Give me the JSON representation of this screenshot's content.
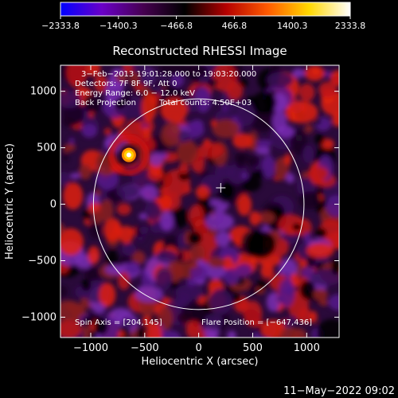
{
  "chart_data": {
    "type": "heatmap",
    "title": "Reconstructed RHESSI Image",
    "xlabel": "Heliocentric X (arcsec)",
    "ylabel": "Heliocentric Y (arcsec)",
    "xlim": [
      -1280,
      1300
    ],
    "ylim": [
      -1180,
      1230
    ],
    "x_ticks": [
      -1000,
      -500,
      0,
      500,
      1000
    ],
    "x_tick_labels": [
      "−1000",
      "−500",
      "0",
      "500",
      "1000"
    ],
    "y_ticks": [
      -1000,
      -500,
      0,
      500,
      1000
    ],
    "y_tick_labels": [
      "−1000",
      "−500",
      "0",
      "500",
      "1000"
    ],
    "colorbar": {
      "range": [
        -2333.8,
        2333.8
      ],
      "ticks": [
        -2333.8,
        -1400.3,
        -466.8,
        466.8,
        1400.3,
        2333.8
      ],
      "tick_labels": [
        "−2333.8",
        "−1400.3",
        "−466.8",
        "466.8",
        "1400.3",
        "2333.8"
      ],
      "stops": [
        "#0000ff",
        "#6a00c8",
        "#460050",
        "#000000",
        "#b40000",
        "#ff5a00",
        "#ffd700",
        "#ffffff"
      ]
    },
    "annotations": [
      "3−Feb−2013 19:01:28.000 to 19:03:20.000",
      "Detectors: 7F 8F 9F, Att 0",
      "Energy Range: 6.0 − 12.0 keV",
      "Back Projection",
      "Total counts: 4.50E+03",
      "Spin Axis = [204,145]",
      "Flare Position = [−647,436]"
    ],
    "solar_limb": {
      "center": [
        0,
        0
      ],
      "radius": 975
    },
    "spin_axis": [
      204,
      145
    ],
    "flare_position": [
      -647,
      436
    ],
    "grid": false,
    "legend": "none"
  },
  "footer": {
    "timestamp": "11−May−2022 09:02"
  }
}
